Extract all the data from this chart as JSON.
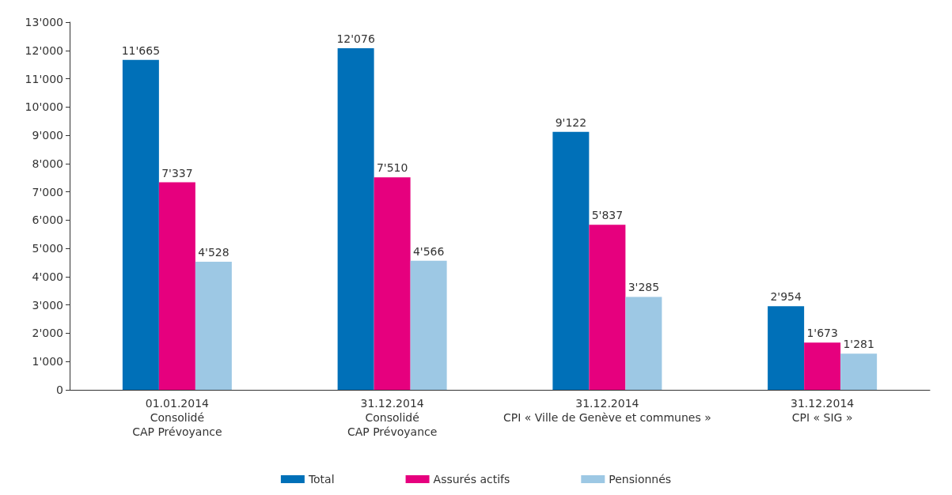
{
  "chart_data": {
    "type": "bar",
    "categories": [
      "01.01.2014\nConsolidé\nCAP Prévoyance",
      "31.12.2014\nConsolidé\nCAP Prévoyance",
      "31.12.2014\nCPI « Ville de Genève et communes »",
      "31.12.2014\nCPI « SIG »"
    ],
    "series": [
      {
        "name": "Total",
        "color": "#0070b8",
        "values": [
          11665,
          12076,
          9122,
          2954
        ],
        "value_labels": [
          "11'665",
          "12'076",
          "9'122",
          "2'954"
        ]
      },
      {
        "name": "Assurés actifs",
        "color": "#e6007e",
        "values": [
          7337,
          7510,
          5837,
          1673
        ],
        "value_labels": [
          "7'337",
          "7'510",
          "5'837",
          "1'673"
        ]
      },
      {
        "name": "Pensionnés",
        "color": "#9dc8e4",
        "values": [
          4528,
          4566,
          3285,
          1281
        ],
        "value_labels": [
          "4'528",
          "4'566",
          "3'285",
          "1'281"
        ]
      }
    ],
    "ylim": [
      0,
      13000
    ],
    "yticks": [
      0,
      {
        "value": 1000,
        "label": "1'000"
      },
      {
        "value": 2000,
        "label": "2'000"
      },
      {
        "value": 3000,
        "label": "3'000"
      },
      {
        "value": 4000,
        "label": "4'000"
      },
      {
        "value": 5000,
        "label": "5'000"
      },
      {
        "value": 6000,
        "label": "6'000"
      },
      {
        "value": 7000,
        "label": "7'000"
      },
      {
        "value": 8000,
        "label": "8'000"
      },
      {
        "value": 9000,
        "label": "9'000"
      },
      {
        "value": 10000,
        "label": "10'000"
      },
      {
        "value": 11000,
        "label": "11'000"
      },
      {
        "value": 12000,
        "label": "12'000"
      },
      {
        "value": 13000,
        "label": "13'000"
      }
    ],
    "grid": false,
    "legend": "bottom"
  }
}
